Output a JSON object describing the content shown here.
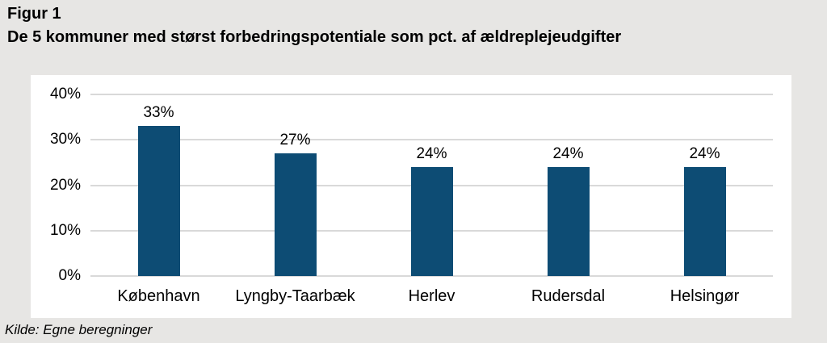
{
  "header": {
    "figure_label": "Figur 1",
    "title": "De 5 kommuner med størst forbedringspotentiale som pct. af ældreplejeudgifter"
  },
  "footer": {
    "source": "Kilde: Egne beregninger"
  },
  "colors": {
    "page_bg": "#E7E6E4",
    "panel_bg": "#FFFFFF",
    "bar": "#0D4C74",
    "gridline": "#D9D9D9",
    "text": "#000000"
  },
  "chart_data": {
    "type": "bar",
    "title": "De 5 kommuner med størst forbedringspotentiale som pct. af ældreplejeudgifter",
    "categories": [
      "København",
      "Lyngby-Taarbæk",
      "Herlev",
      "Rudersdal",
      "Helsingør"
    ],
    "values": [
      33,
      27,
      24,
      24,
      24
    ],
    "value_labels": [
      "33%",
      "27%",
      "24%",
      "24%",
      "24%"
    ],
    "unit": "%",
    "xlabel": "",
    "ylabel": "",
    "ylim": [
      0,
      40
    ],
    "yticks": [
      0,
      10,
      20,
      30,
      40
    ],
    "ytick_labels": [
      "0%",
      "10%",
      "20%",
      "30%",
      "40%"
    ],
    "grid": true,
    "legend": false,
    "bar_color": "#0D4C74"
  }
}
